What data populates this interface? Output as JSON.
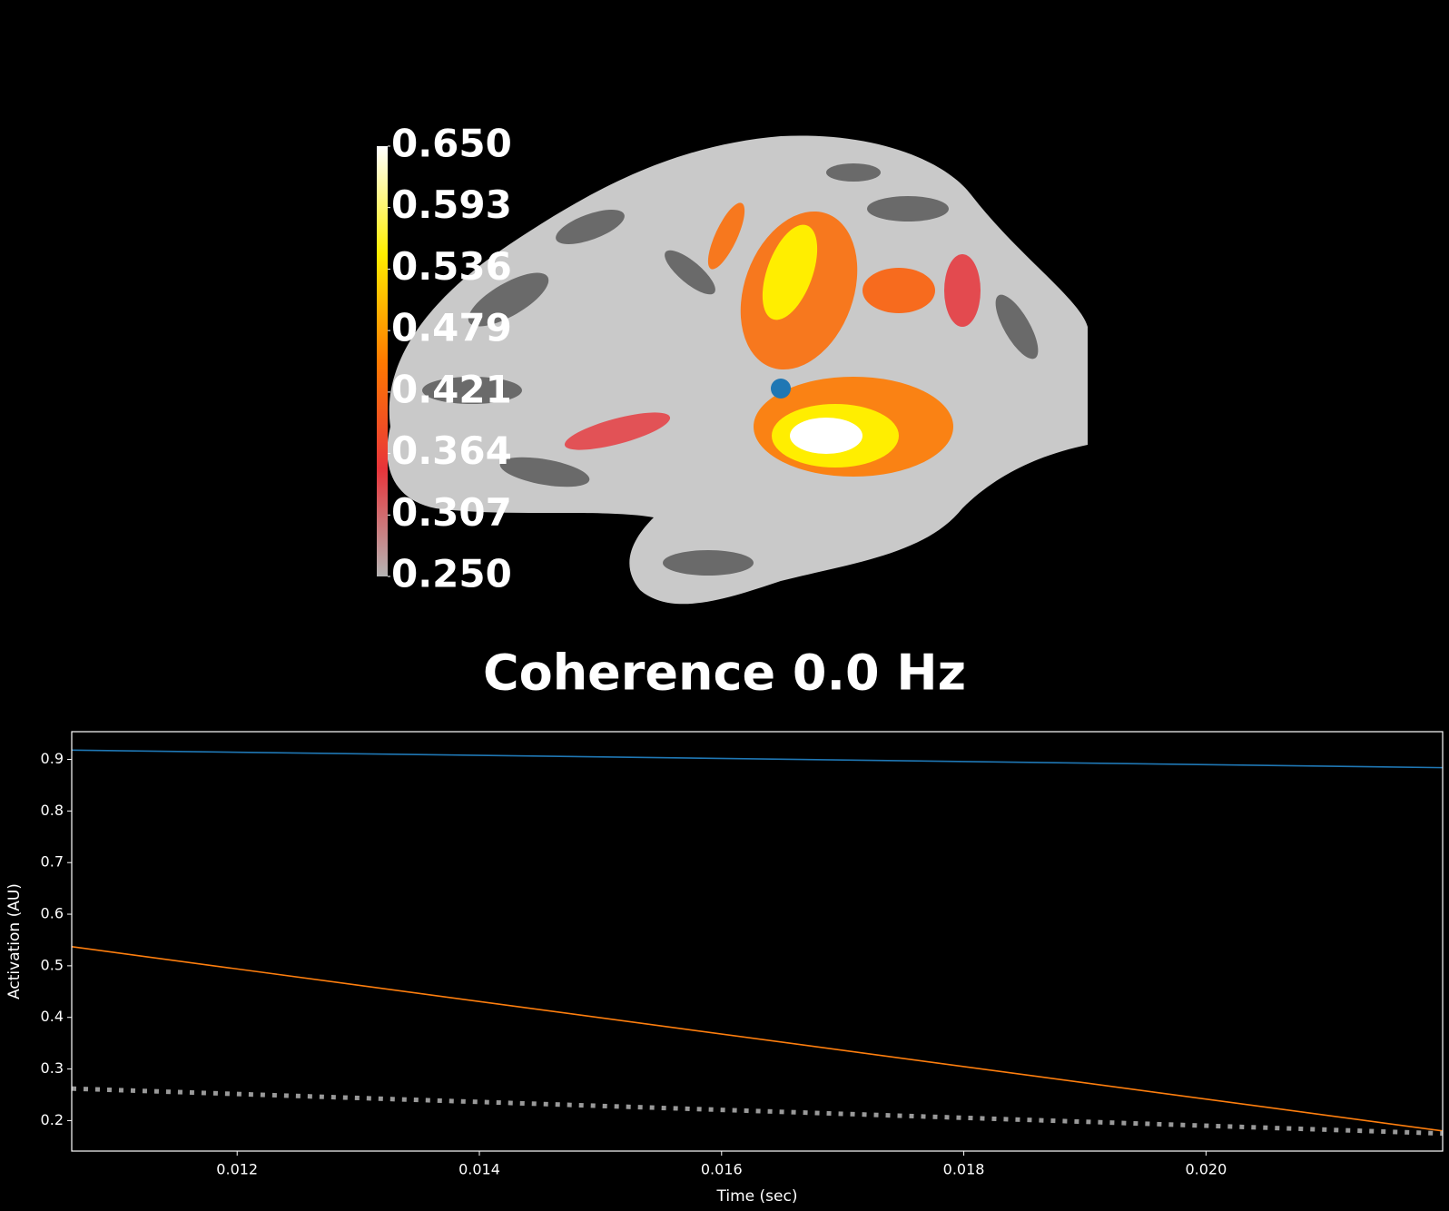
{
  "chart_data": [
    {
      "type": "colorbar",
      "title": "Coherence 0.0 Hz",
      "ylim": [
        0.25,
        0.65
      ],
      "yticks": [
        {
          "value": 0.25,
          "label": "0.250"
        },
        {
          "value": 0.3071,
          "label": "0.307"
        },
        {
          "value": 0.3643,
          "label": "0.364"
        },
        {
          "value": 0.4214,
          "label": "0.421"
        },
        {
          "value": 0.4786,
          "label": "0.479"
        },
        {
          "value": 0.5357,
          "label": "0.536"
        },
        {
          "value": 0.5929,
          "label": "0.593"
        },
        {
          "value": 0.65,
          "label": "0.650"
        }
      ],
      "colormap": [
        "#b4b4b4",
        "#e8343a",
        "#ff7a00",
        "#ffee00",
        "#ffffff"
      ]
    },
    {
      "type": "line",
      "xlabel": "Time (sec)",
      "ylabel": "Activation (AU)",
      "x": [
        0.010634,
        0.021954
      ],
      "xlim": [
        0.010634,
        0.021954
      ],
      "ylim": [
        0.1409,
        0.9537
      ],
      "xticks": [
        {
          "value": 0.012,
          "label": "0.012"
        },
        {
          "value": 0.014,
          "label": "0.014"
        },
        {
          "value": 0.016,
          "label": "0.016"
        },
        {
          "value": 0.018,
          "label": "0.018"
        },
        {
          "value": 0.02,
          "label": "0.020"
        }
      ],
      "yticks": [
        0.2,
        0.3,
        0.4,
        0.5,
        0.6,
        0.7,
        0.8,
        0.9
      ],
      "series": [
        {
          "color": "#1f77b4",
          "values": [
            0.918,
            0.884
          ],
          "style": "solid"
        },
        {
          "color": "#ff7f0e",
          "values": [
            0.537,
            0.18
          ],
          "style": "solid"
        },
        {
          "color": "#999999",
          "values": [
            0.262,
            0.175
          ],
          "style": "dotted"
        }
      ]
    }
  ]
}
